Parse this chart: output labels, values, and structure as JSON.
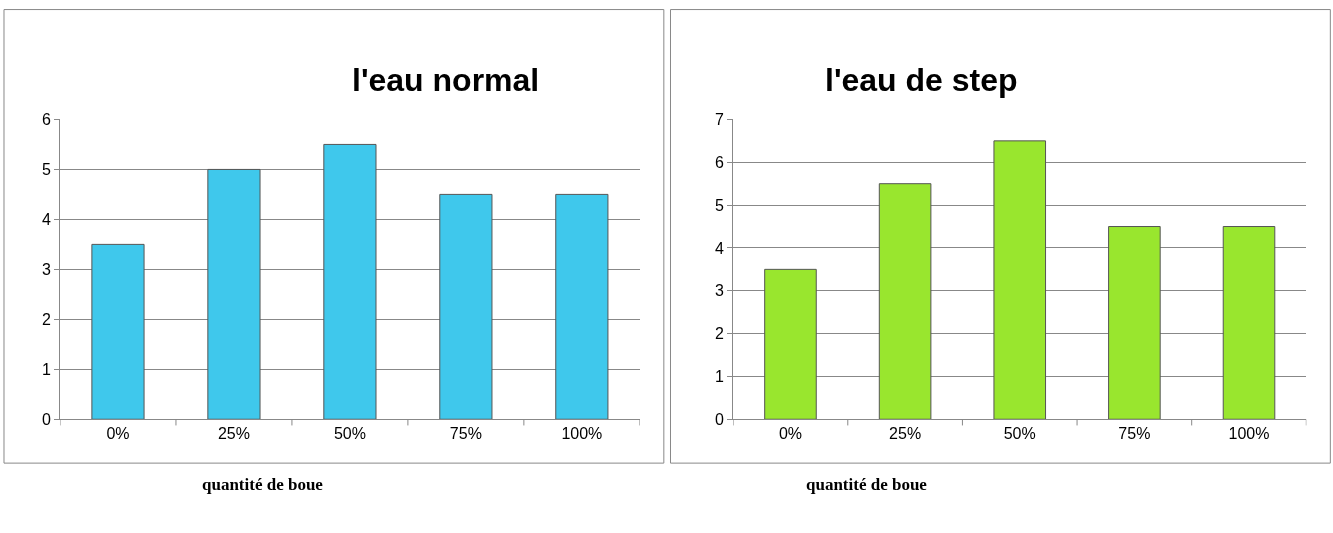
{
  "chart_data": [
    {
      "type": "bar",
      "title": "l'eau normal",
      "xlabel": "quantité de boue",
      "categories": [
        "0%",
        "25%",
        "50%",
        "75%",
        "100%"
      ],
      "values": [
        3.5,
        5,
        5.5,
        4.5,
        4.5
      ],
      "color": "#3fc8ec",
      "ylim": [
        0,
        6
      ],
      "yticks": [
        0,
        1,
        2,
        3,
        4,
        5,
        6
      ],
      "grid": "y"
    },
    {
      "type": "bar",
      "title": "l'eau de step",
      "xlabel": "quantité de boue",
      "categories": [
        "0%",
        "25%",
        "50%",
        "75%",
        "100%"
      ],
      "values": [
        3.5,
        5.5,
        6.5,
        4.5,
        4.5
      ],
      "color": "#99e62e",
      "ylim": [
        0,
        7
      ],
      "yticks": [
        0,
        1,
        2,
        3,
        4,
        5,
        6,
        7
      ],
      "grid": "y"
    }
  ]
}
